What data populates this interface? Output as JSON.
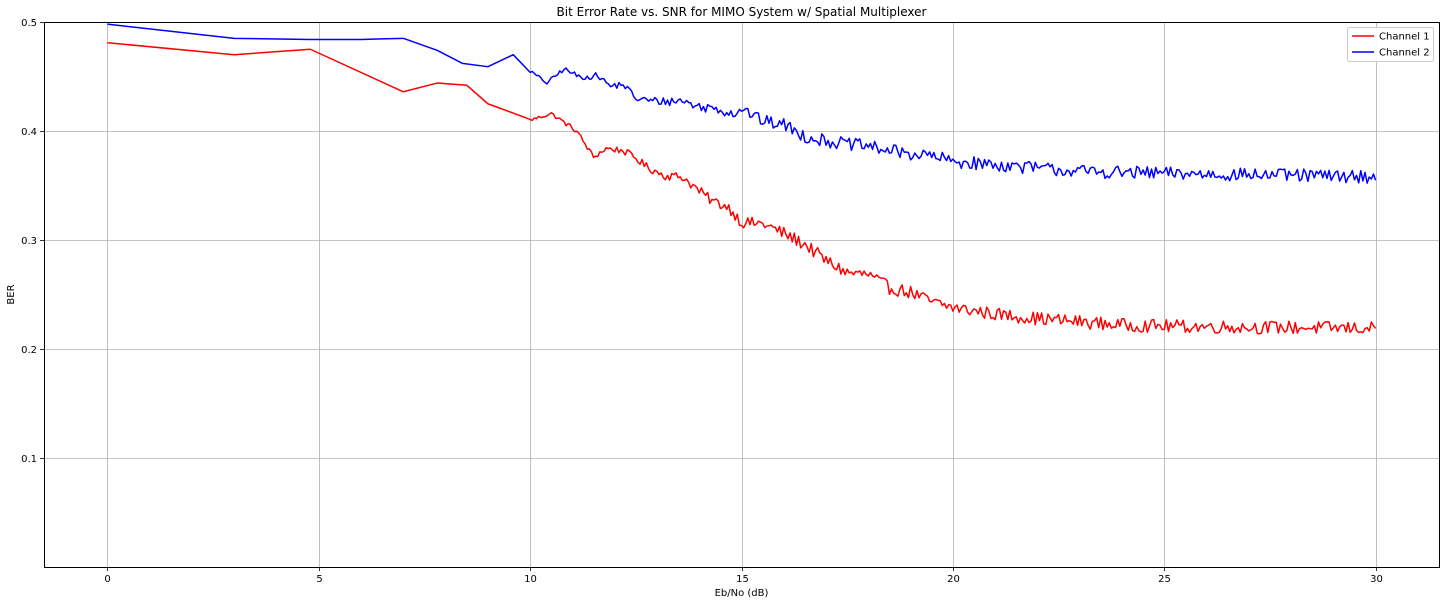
{
  "chart_data": {
    "type": "line",
    "title": "Bit Error Rate vs. SNR for MIMO System w/ Spatial Multiplexer",
    "xlabel": "Eb/No (dB)",
    "ylabel": "BER",
    "xlim": [
      -1.5,
      31.5
    ],
    "ylim": [
      0.0,
      0.5
    ],
    "xticks": [
      0,
      5,
      10,
      15,
      20,
      25,
      30
    ],
    "yticks": [
      0.1,
      0.2,
      0.3,
      0.4,
      0.5
    ],
    "xtick_labels": [
      "0",
      "5",
      "10",
      "15",
      "20",
      "25",
      "30"
    ],
    "ytick_labels": [
      "0.1",
      "0.2",
      "0.3",
      "0.4",
      "0.5"
    ],
    "grid": true,
    "legend_position": "top-right",
    "series": [
      {
        "name": "Channel 1",
        "color": "#ff0000",
        "anchors": [
          [
            0,
            0.481
          ],
          [
            3.0,
            0.47
          ],
          [
            4.8,
            0.475
          ],
          [
            7.0,
            0.436
          ],
          [
            7.8,
            0.444
          ],
          [
            8.5,
            0.442
          ],
          [
            9.0,
            0.425
          ],
          [
            10.0,
            0.41
          ],
          [
            10.5,
            0.416
          ],
          [
            11.1,
            0.4
          ],
          [
            11.5,
            0.376
          ],
          [
            11.8,
            0.384
          ],
          [
            12.2,
            0.382
          ],
          [
            12.5,
            0.375
          ],
          [
            12.8,
            0.366
          ],
          [
            13.2,
            0.359
          ],
          [
            13.6,
            0.358
          ],
          [
            14.0,
            0.345
          ],
          [
            14.3,
            0.336
          ],
          [
            14.7,
            0.33
          ],
          [
            15.0,
            0.316
          ],
          [
            15.5,
            0.315
          ],
          [
            16.0,
            0.306
          ],
          [
            16.5,
            0.296
          ],
          [
            17.0,
            0.281
          ],
          [
            17.5,
            0.27
          ],
          [
            18.0,
            0.268
          ],
          [
            18.5,
            0.256
          ],
          [
            19.0,
            0.252
          ],
          [
            19.5,
            0.243
          ],
          [
            20.0,
            0.238
          ],
          [
            21.0,
            0.232
          ],
          [
            22.0,
            0.228
          ],
          [
            23.0,
            0.225
          ],
          [
            24.0,
            0.222
          ],
          [
            25.0,
            0.221
          ],
          [
            27.0,
            0.22
          ],
          [
            30.0,
            0.219
          ]
        ],
        "dense_from": 10,
        "noise_amplitude": 0.006
      },
      {
        "name": "Channel 2",
        "color": "#0000ff",
        "anchors": [
          [
            0,
            0.498
          ],
          [
            3.0,
            0.485
          ],
          [
            4.8,
            0.484
          ],
          [
            6.0,
            0.484
          ],
          [
            7.0,
            0.485
          ],
          [
            7.8,
            0.474
          ],
          [
            8.4,
            0.462
          ],
          [
            9.0,
            0.459
          ],
          [
            9.6,
            0.47
          ],
          [
            10.0,
            0.455
          ],
          [
            10.4,
            0.444
          ],
          [
            10.8,
            0.457
          ],
          [
            11.2,
            0.449
          ],
          [
            11.6,
            0.451
          ],
          [
            11.9,
            0.441
          ],
          [
            12.2,
            0.443
          ],
          [
            12.5,
            0.43
          ],
          [
            12.8,
            0.428
          ],
          [
            13.2,
            0.427
          ],
          [
            13.6,
            0.428
          ],
          [
            14.0,
            0.422
          ],
          [
            14.4,
            0.421
          ],
          [
            14.8,
            0.416
          ],
          [
            15.0,
            0.421
          ],
          [
            15.5,
            0.409
          ],
          [
            16.0,
            0.406
          ],
          [
            16.5,
            0.395
          ],
          [
            17.0,
            0.391
          ],
          [
            17.5,
            0.388
          ],
          [
            18.0,
            0.386
          ],
          [
            18.5,
            0.382
          ],
          [
            19.0,
            0.379
          ],
          [
            19.5,
            0.377
          ],
          [
            20.0,
            0.372
          ],
          [
            21.0,
            0.369
          ],
          [
            22.0,
            0.366
          ],
          [
            23.0,
            0.363
          ],
          [
            24.0,
            0.362
          ],
          [
            25.0,
            0.361
          ],
          [
            27.0,
            0.36
          ],
          [
            30.0,
            0.358
          ]
        ],
        "dense_from": 10,
        "noise_amplitude": 0.006
      }
    ]
  }
}
